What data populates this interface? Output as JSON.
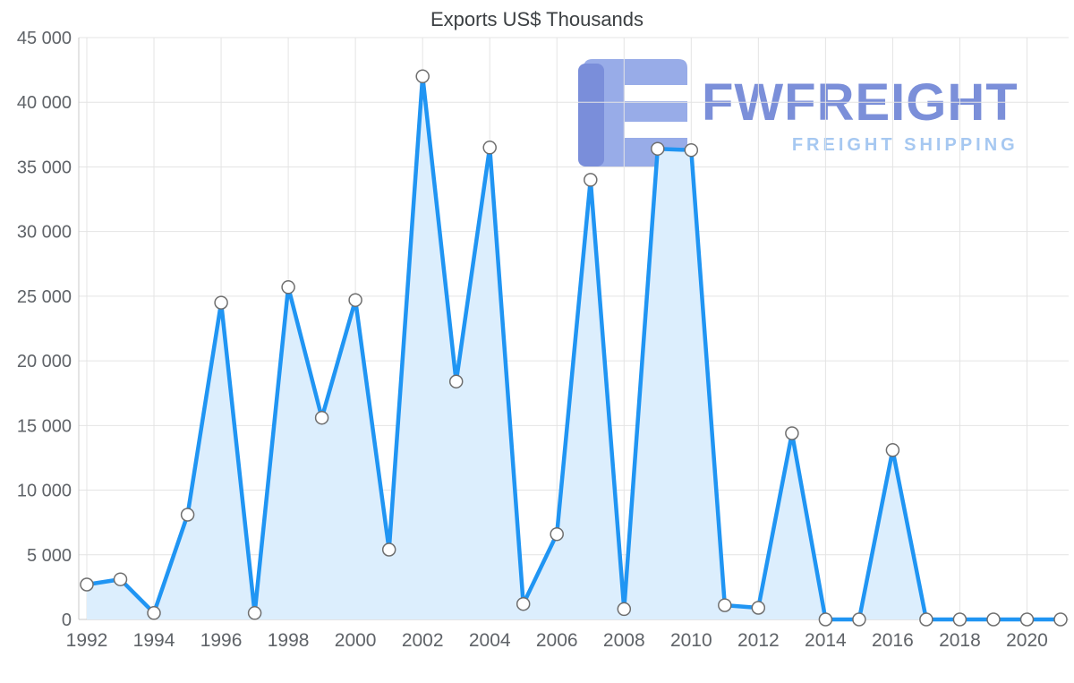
{
  "chart_data": {
    "type": "area",
    "title": "Exports US$ Thousands",
    "xlabel": "",
    "ylabel": "",
    "x": [
      1992,
      1993,
      1994,
      1995,
      1996,
      1997,
      1998,
      1999,
      2000,
      2001,
      2002,
      2003,
      2004,
      2005,
      2006,
      2007,
      2008,
      2009,
      2010,
      2011,
      2012,
      2013,
      2014,
      2015,
      2016,
      2017,
      2018,
      2019,
      2020,
      2021
    ],
    "values": [
      2700,
      3100,
      500,
      8100,
      24500,
      500,
      25700,
      15600,
      24700,
      5400,
      42000,
      18400,
      36500,
      1200,
      6600,
      34000,
      800,
      36400,
      36300,
      1100,
      900,
      14400,
      0,
      0,
      13100,
      0,
      0,
      0,
      0,
      0
    ],
    "xlim": [
      1992,
      2021
    ],
    "ylim": [
      0,
      45000
    ],
    "grid": true,
    "legend": "none",
    "xticks": [
      {
        "value": 1992,
        "label": "1992"
      },
      {
        "value": 1994,
        "label": "1994"
      },
      {
        "value": 1996,
        "label": "1996"
      },
      {
        "value": 1998,
        "label": "1998"
      },
      {
        "value": 2000,
        "label": "2000"
      },
      {
        "value": 2002,
        "label": "2002"
      },
      {
        "value": 2004,
        "label": "2004"
      },
      {
        "value": 2006,
        "label": "2006"
      },
      {
        "value": 2008,
        "label": "2008"
      },
      {
        "value": 2010,
        "label": "2010"
      },
      {
        "value": 2012,
        "label": "2012"
      },
      {
        "value": 2014,
        "label": "2014"
      },
      {
        "value": 2016,
        "label": "2016"
      },
      {
        "value": 2018,
        "label": "2018"
      },
      {
        "value": 2020,
        "label": "2020"
      }
    ],
    "yticks": [
      {
        "value": 0,
        "label": "0"
      },
      {
        "value": 5000,
        "label": "5 000"
      },
      {
        "value": 10000,
        "label": "10 000"
      },
      {
        "value": 15000,
        "label": "15 000"
      },
      {
        "value": 20000,
        "label": "20 000"
      },
      {
        "value": 25000,
        "label": "25 000"
      },
      {
        "value": 30000,
        "label": "30 000"
      },
      {
        "value": 35000,
        "label": "35 000"
      },
      {
        "value": 40000,
        "label": "40 000"
      },
      {
        "value": 45000,
        "label": "45 000"
      }
    ],
    "line_color": "#2095f3",
    "area_color": "#dceefd",
    "marker_fill": "#ffffff",
    "marker_stroke": "#6e6e6e",
    "grid_color": "#e4e4e4",
    "axis_color": "#c8c8c8",
    "tick_label_color": "#5f6368",
    "title_color": "#3c4043"
  },
  "watermark": {
    "brand": "FWFREIGHT",
    "tagline": "FREIGHT SHIPPING",
    "brand_color": "#7b8fd9",
    "tagline_color": "#a6c8f1",
    "icon_light_color": "#98ace8",
    "icon_dark_color": "#7a8eda"
  }
}
